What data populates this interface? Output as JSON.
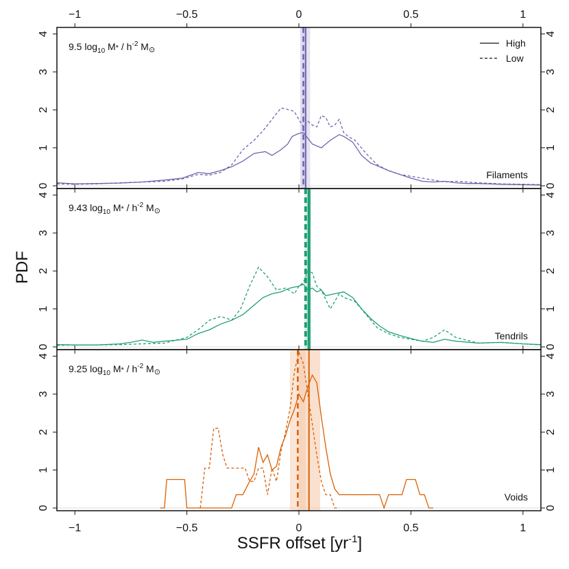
{
  "chart_data": {
    "type": "line",
    "xlabel": "SSFR offset [yr",
    "xlabel_sup": "-1",
    "xlabel_close": "]",
    "ylabel": "PDF",
    "xlim": [
      -1.08,
      1.08
    ],
    "x_ticks": [
      -1,
      -0.5,
      0,
      0.5,
      1
    ],
    "x_tick_labels": [
      "−1",
      "−0.5",
      "0",
      "0.5",
      "1"
    ],
    "y_ticks": [
      0,
      1,
      2,
      3,
      4
    ],
    "y_tick_labels": [
      "0",
      "1",
      "2",
      "3",
      "4"
    ],
    "legend": {
      "position": "top-right",
      "entries": [
        {
          "label": "High",
          "style": "solid"
        },
        {
          "label": "Low",
          "style": "dashed"
        }
      ]
    },
    "panels": [
      {
        "name": "Filaments",
        "color": "#6e63ad",
        "band_color": "#cfcbe6",
        "ylim": [
          0,
          4.1
        ],
        "mass_value": "9.5",
        "mass_rest": " log",
        "mass_sub": "10",
        "mass_unit": " M",
        "mass_star": "*",
        "mass_mid": " / h",
        "mass_sup": "-2",
        "mass_end": " M",
        "mass_sun": "⊙",
        "median_high": 0.03,
        "median_low": 0.02,
        "band_high": [
          0.005,
          0.05
        ],
        "band_low": [
          0.01,
          0.035
        ],
        "series": [
          {
            "name": "High",
            "style": "solid",
            "x": [
              -1.08,
              -1.0,
              -0.9,
              -0.8,
              -0.7,
              -0.6,
              -0.52,
              -0.45,
              -0.4,
              -0.35,
              -0.3,
              -0.25,
              -0.2,
              -0.15,
              -0.12,
              -0.08,
              -0.05,
              -0.03,
              0.0,
              0.02,
              0.04,
              0.06,
              0.1,
              0.14,
              0.18,
              0.2,
              0.24,
              0.28,
              0.32,
              0.36,
              0.4,
              0.45,
              0.5,
              0.55,
              0.6,
              0.65,
              0.7,
              0.75,
              0.8,
              0.85,
              0.9,
              1.0,
              1.08
            ],
            "y": [
              0.08,
              0.05,
              0.06,
              0.07,
              0.1,
              0.15,
              0.2,
              0.35,
              0.32,
              0.4,
              0.5,
              0.65,
              0.85,
              0.9,
              0.8,
              0.95,
              1.1,
              1.3,
              1.38,
              1.4,
              1.25,
              1.1,
              1.0,
              1.2,
              1.35,
              1.3,
              1.15,
              0.8,
              0.6,
              0.5,
              0.4,
              0.3,
              0.2,
              0.12,
              0.1,
              0.12,
              0.08,
              0.06,
              0.06,
              0.05,
              0.04,
              0.03,
              0.02
            ]
          },
          {
            "name": "Low",
            "style": "dashed",
            "x": [
              -1.08,
              -1.0,
              -0.9,
              -0.8,
              -0.7,
              -0.6,
              -0.52,
              -0.45,
              -0.4,
              -0.35,
              -0.3,
              -0.25,
              -0.2,
              -0.16,
              -0.12,
              -0.08,
              -0.04,
              -0.02,
              0.0,
              0.02,
              0.04,
              0.06,
              0.08,
              0.1,
              0.12,
              0.14,
              0.16,
              0.18,
              0.2,
              0.22,
              0.25,
              0.3,
              0.35,
              0.4,
              0.45,
              0.5,
              0.55,
              0.6,
              0.65,
              0.7,
              0.8,
              0.9,
              1.0,
              1.08
            ],
            "y": [
              0.05,
              0.04,
              0.05,
              0.08,
              0.1,
              0.12,
              0.18,
              0.3,
              0.28,
              0.35,
              0.55,
              0.95,
              1.2,
              1.45,
              1.75,
              2.05,
              2.0,
              1.95,
              1.75,
              1.55,
              1.7,
              1.6,
              1.55,
              1.85,
              1.8,
              1.55,
              1.6,
              1.75,
              1.4,
              1.3,
              1.2,
              0.85,
              0.55,
              0.4,
              0.3,
              0.25,
              0.2,
              0.15,
              0.1,
              0.12,
              0.08,
              0.05,
              0.04,
              0.03
            ]
          }
        ]
      },
      {
        "name": "Tendrils",
        "color": "#1f9e74",
        "band_color": "#a9dcc8",
        "ylim": [
          0,
          4.1
        ],
        "mass_value": "9.43",
        "mass_rest": " log",
        "mass_sub": "10",
        "mass_unit": " M",
        "mass_star": "*",
        "mass_mid": " / h",
        "mass_sup": "-2",
        "mass_end": " M",
        "mass_sun": "⊙",
        "median_high": 0.045,
        "median_low": 0.03,
        "band_high": [
          0.035,
          0.055
        ],
        "band_low": [
          0.025,
          0.035
        ],
        "series": [
          {
            "name": "High",
            "style": "solid",
            "x": [
              -1.08,
              -1.0,
              -0.9,
              -0.8,
              -0.75,
              -0.7,
              -0.65,
              -0.6,
              -0.5,
              -0.45,
              -0.4,
              -0.35,
              -0.3,
              -0.25,
              -0.2,
              -0.16,
              -0.12,
              -0.08,
              -0.04,
              0.0,
              0.02,
              0.04,
              0.06,
              0.08,
              0.1,
              0.12,
              0.16,
              0.2,
              0.24,
              0.28,
              0.32,
              0.36,
              0.4,
              0.45,
              0.5,
              0.55,
              0.6,
              0.65,
              0.7,
              0.8,
              0.9,
              1.0,
              1.08
            ],
            "y": [
              0.06,
              0.05,
              0.05,
              0.08,
              0.12,
              0.18,
              0.12,
              0.15,
              0.2,
              0.35,
              0.45,
              0.6,
              0.7,
              0.85,
              1.1,
              1.3,
              1.4,
              1.45,
              1.55,
              1.6,
              1.65,
              1.5,
              1.55,
              1.45,
              1.5,
              1.35,
              1.4,
              1.45,
              1.3,
              1.0,
              0.75,
              0.55,
              0.4,
              0.3,
              0.22,
              0.15,
              0.12,
              0.2,
              0.15,
              0.1,
              0.12,
              0.08,
              0.06
            ]
          },
          {
            "name": "Low",
            "style": "dashed",
            "x": [
              -1.08,
              -1.0,
              -0.9,
              -0.8,
              -0.7,
              -0.6,
              -0.5,
              -0.45,
              -0.4,
              -0.35,
              -0.32,
              -0.3,
              -0.26,
              -0.22,
              -0.18,
              -0.14,
              -0.1,
              -0.06,
              -0.02,
              0.0,
              0.02,
              0.04,
              0.06,
              0.08,
              0.1,
              0.12,
              0.14,
              0.16,
              0.18,
              0.2,
              0.25,
              0.3,
              0.35,
              0.4,
              0.45,
              0.5,
              0.55,
              0.6,
              0.65,
              0.7,
              0.8,
              0.9,
              1.0,
              1.08
            ],
            "y": [
              0.04,
              0.05,
              0.05,
              0.06,
              0.08,
              0.1,
              0.25,
              0.45,
              0.7,
              0.8,
              0.75,
              0.7,
              1.0,
              1.6,
              2.1,
              1.85,
              1.5,
              1.55,
              1.4,
              1.6,
              1.7,
              2.0,
              1.95,
              1.6,
              1.5,
              1.25,
              1.0,
              1.2,
              1.4,
              1.3,
              1.2,
              0.85,
              0.5,
              0.35,
              0.25,
              0.2,
              0.15,
              0.25,
              0.45,
              0.25,
              0.1,
              0.12,
              0.08,
              0.05
            ]
          }
        ]
      },
      {
        "name": "Voids",
        "color": "#d95f02",
        "band_color": "#f5c6a6",
        "ylim": [
          0,
          4.1
        ],
        "mass_value": "9.25",
        "mass_rest": " log",
        "mass_sub": "10",
        "mass_unit": " M",
        "mass_star": "*",
        "mass_mid": " / h",
        "mass_sup": "-2",
        "mass_end": " M",
        "mass_sun": "⊙",
        "median_high": 0.045,
        "median_low": -0.005,
        "band_high": [
          0.0,
          0.095
        ],
        "band_low": [
          -0.04,
          0.03
        ],
        "series": [
          {
            "name": "High",
            "style": "solid",
            "x": [
              -0.62,
              -0.6,
              -0.59,
              -0.58,
              -0.51,
              -0.5,
              -0.49,
              -0.4,
              -0.35,
              -0.3,
              -0.28,
              -0.25,
              -0.22,
              -0.2,
              -0.18,
              -0.16,
              -0.14,
              -0.12,
              -0.1,
              -0.08,
              -0.06,
              -0.04,
              -0.02,
              0.0,
              0.02,
              0.04,
              0.06,
              0.08,
              0.1,
              0.12,
              0.14,
              0.16,
              0.18,
              0.2,
              0.22,
              0.24,
              0.26,
              0.28,
              0.3,
              0.32,
              0.34,
              0.36,
              0.38,
              0.4,
              0.42,
              0.44,
              0.46,
              0.48,
              0.5,
              0.52,
              0.54,
              0.56,
              0.58,
              0.6
            ],
            "y": [
              0,
              0,
              0.75,
              0.75,
              0.75,
              0.0,
              0.0,
              0.0,
              0.0,
              0.0,
              0.35,
              0.35,
              0.7,
              0.9,
              1.6,
              1.2,
              1.4,
              1.0,
              1.1,
              1.6,
              1.9,
              2.3,
              2.6,
              3.0,
              2.8,
              3.2,
              3.5,
              3.3,
              2.4,
              1.6,
              0.9,
              0.5,
              0.35,
              0.35,
              0.35,
              0.35,
              0.35,
              0.35,
              0.35,
              0.35,
              0.35,
              0.35,
              0.0,
              0.35,
              0.35,
              0.35,
              0.35,
              0.75,
              0.75,
              0.75,
              0.35,
              0.35,
              0.0,
              0.0
            ]
          },
          {
            "name": "Low",
            "style": "dashed",
            "x": [
              -0.44,
              -0.42,
              -0.4,
              -0.38,
              -0.36,
              -0.34,
              -0.32,
              -0.3,
              -0.28,
              -0.26,
              -0.24,
              -0.22,
              -0.2,
              -0.18,
              -0.16,
              -0.14,
              -0.12,
              -0.1,
              -0.08,
              -0.06,
              -0.04,
              -0.02,
              0.0,
              0.02,
              0.04,
              0.06,
              0.08,
              0.1,
              0.12,
              0.14,
              0.16,
              0.18
            ],
            "y": [
              0.0,
              1.05,
              1.05,
              2.1,
              2.1,
              1.4,
              1.05,
              1.05,
              1.05,
              1.05,
              1.05,
              0.7,
              0.7,
              1.05,
              1.05,
              0.35,
              1.05,
              0.7,
              1.5,
              2.0,
              2.6,
              3.6,
              4.1,
              3.8,
              3.0,
              2.2,
              1.4,
              0.7,
              0.35,
              0.35,
              0.0,
              0.0
            ]
          }
        ]
      }
    ]
  }
}
